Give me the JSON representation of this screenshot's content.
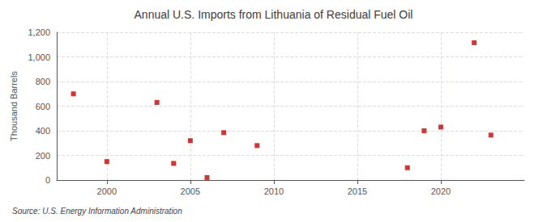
{
  "chart_data": {
    "type": "scatter",
    "title": "Annual U.S. Imports from Lithuania of Residual Fuel Oil",
    "ylabel": "Thousand Barrels",
    "source": "Source: U.S. Energy Information Administration",
    "x": [
      1998,
      2000,
      2003,
      2004,
      2005,
      2006,
      2007,
      2009,
      2018,
      2019,
      2020,
      2022,
      2023
    ],
    "values": [
      700,
      150,
      630,
      135,
      320,
      20,
      385,
      280,
      100,
      400,
      430,
      1115,
      365
    ],
    "color": "#cc0000",
    "marker": "square",
    "xlim": [
      1997,
      2025
    ],
    "xticks": [
      2000,
      2005,
      2010,
      2015,
      2020
    ],
    "ylim": [
      0,
      1200
    ],
    "yticks": [
      0,
      200,
      400,
      600,
      {
        "value": 800,
        "label": "800"
      },
      {
        "value": 1000,
        "label": "1,000"
      },
      {
        "value": 1200,
        "label": "1,200"
      }
    ],
    "grid": true
  }
}
